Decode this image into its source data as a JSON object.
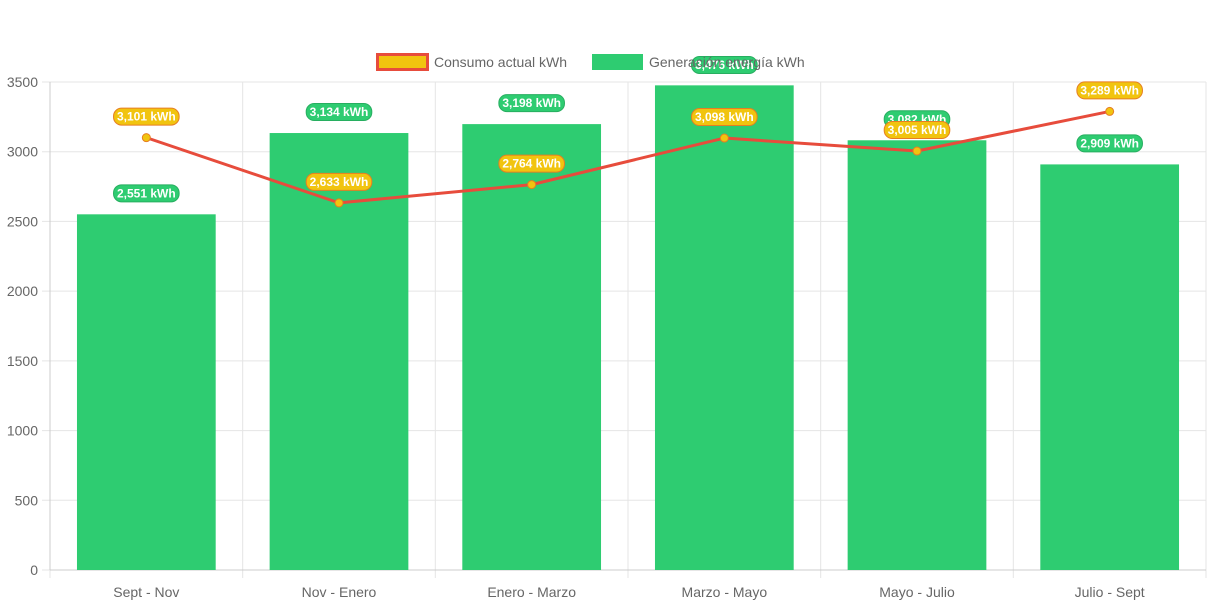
{
  "chart_data": {
    "type": "bar",
    "categories": [
      "Sept - Nov",
      "Nov - Enero",
      "Enero - Marzo",
      "Marzo - Mayo",
      "Mayo - Julio",
      "Julio - Sept"
    ],
    "series": [
      {
        "name": "Generación energía kWh",
        "type": "bar",
        "color": "#2ecc71",
        "values": [
          2551,
          3134,
          3198,
          3476,
          3082,
          2909
        ],
        "labels": [
          "2,551 kWh",
          "3,134 kWh",
          "3,198 kWh",
          "3,476 kWh",
          "3,082 kWh",
          "2,909 kWh"
        ]
      },
      {
        "name": "Consumo actual kWh",
        "type": "line",
        "color": "#e74c3c",
        "point_color": "#f1c40f",
        "values": [
          3101,
          2633,
          2764,
          3098,
          3005,
          3289
        ],
        "labels": [
          "3,101 kWh",
          "2,633 kWh",
          "2,764 kWh",
          "3,098 kWh",
          "3,005 kWh",
          "3,289 kWh"
        ]
      }
    ],
    "y_ticks": [
      0,
      500,
      1000,
      1500,
      2000,
      2500,
      3000,
      3500
    ],
    "ylim": [
      0,
      3500
    ],
    "grid": true,
    "legend_position": "top"
  }
}
